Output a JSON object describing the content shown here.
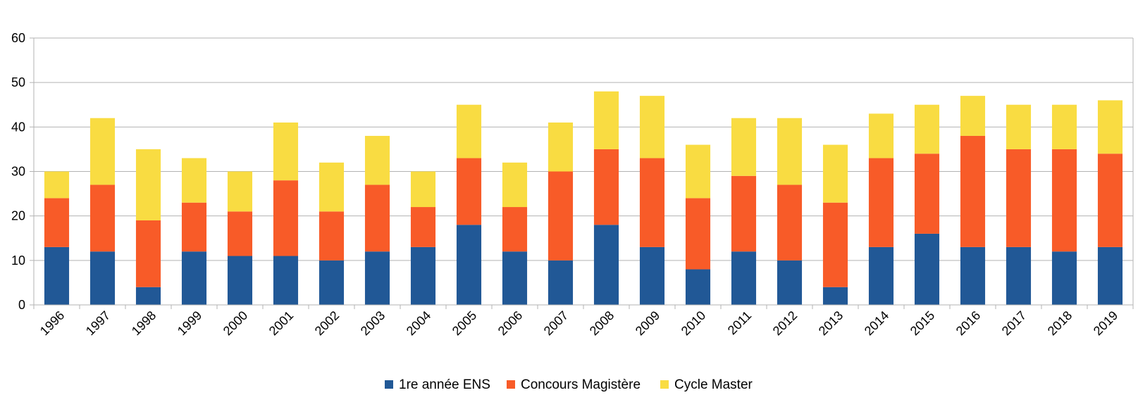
{
  "chart_data": {
    "type": "bar",
    "stacked": true,
    "title": "",
    "xlabel": "",
    "ylabel": "",
    "ylim": [
      0,
      60
    ],
    "yticks": [
      0,
      10,
      20,
      30,
      40,
      50,
      60
    ],
    "grid": true,
    "legend_position": "bottom",
    "categories": [
      "1996",
      "1997",
      "1998",
      "1999",
      "2000",
      "2001",
      "2002",
      "2003",
      "2004",
      "2005",
      "2006",
      "2007",
      "2008",
      "2009",
      "2010",
      "2011",
      "2012",
      "2013",
      "2014",
      "2015",
      "2016",
      "2017",
      "2018",
      "2019"
    ],
    "series": [
      {
        "name": "1re année ENS",
        "color": "#215896",
        "values": [
          13,
          12,
          4,
          12,
          11,
          11,
          10,
          12,
          13,
          18,
          12,
          10,
          18,
          13,
          8,
          12,
          10,
          4,
          13,
          16,
          13,
          13,
          12,
          13
        ]
      },
      {
        "name": "Concours Magistère",
        "color": "#f85b28",
        "values": [
          11,
          15,
          15,
          11,
          10,
          17,
          11,
          15,
          9,
          15,
          10,
          20,
          17,
          20,
          16,
          17,
          17,
          19,
          20,
          18,
          25,
          22,
          23,
          21
        ]
      },
      {
        "name": "Cycle Master",
        "color": "#f9dc42",
        "values": [
          6,
          15,
          16,
          10,
          9,
          13,
          11,
          11,
          8,
          12,
          10,
          11,
          13,
          14,
          12,
          13,
          15,
          13,
          10,
          11,
          9,
          10,
          10,
          12
        ]
      }
    ]
  }
}
